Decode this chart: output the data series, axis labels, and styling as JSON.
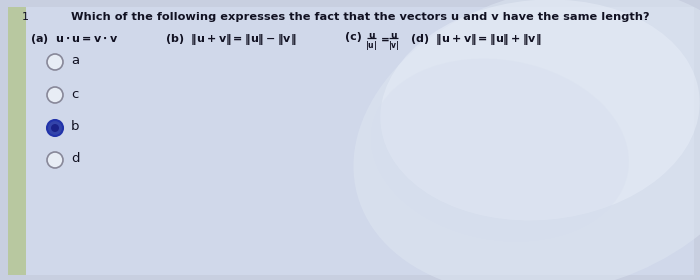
{
  "bg_color": "#c8cfe0",
  "panel_color": "#d0d8ea",
  "left_strip_color": "#b8c4d8",
  "question_number": "1",
  "question_text": "Which of the following expresses the fact that the vectors u and v have the same length?",
  "answers": [
    "a",
    "c",
    "b",
    "d"
  ],
  "selected": "b",
  "font_color": "#111122",
  "radio_empty_face": "#e8edf5",
  "radio_empty_edge": "#888899",
  "radio_filled_face": "#3344aa",
  "radio_filled_edge": "#2233aa",
  "swirl_color1": "#dce4f0",
  "swirl_color2": "#e8eef8",
  "swirl_color3": "#d4dced"
}
